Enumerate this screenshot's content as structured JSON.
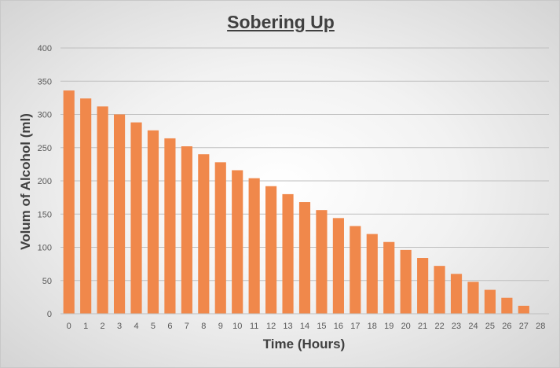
{
  "chart_data": {
    "type": "bar",
    "title": "Sobering Up",
    "xlabel": "Time  (Hours)",
    "ylabel": "Volum of Alcohol  (ml)",
    "categories": [
      "0",
      "1",
      "2",
      "3",
      "4",
      "5",
      "6",
      "7",
      "8",
      "9",
      "10",
      "11",
      "12",
      "13",
      "14",
      "15",
      "16",
      "17",
      "18",
      "19",
      "20",
      "21",
      "22",
      "23",
      "24",
      "25",
      "26",
      "27",
      "28"
    ],
    "series": [
      {
        "values": [
          336,
          324,
          312,
          300,
          288,
          276,
          264,
          252,
          240,
          228,
          216,
          204,
          192,
          180,
          168,
          156,
          144,
          132,
          120,
          108,
          96,
          84,
          72,
          60,
          48,
          36,
          24,
          12,
          0
        ]
      }
    ],
    "ylim": [
      0,
      400
    ],
    "yticks": [
      0,
      50,
      100,
      150,
      200,
      250,
      300,
      350,
      400
    ],
    "grid": true,
    "legend": "none",
    "bar_color": "#f0884b",
    "gridline_color": "#bfbfbf"
  }
}
